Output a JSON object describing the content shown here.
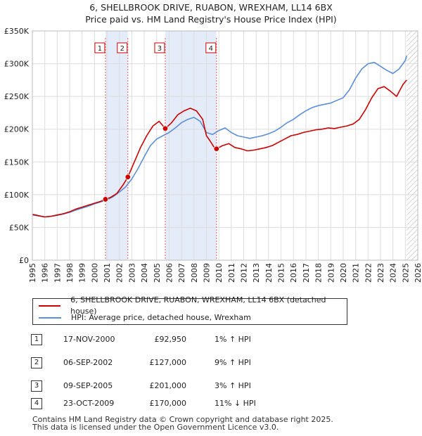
{
  "title": {
    "line1": "6, SHELLBROOK DRIVE, RUABON, WREXHAM, LL14 6BX",
    "line2": "Price paid vs. HM Land Registry's House Price Index (HPI)"
  },
  "chart_data": {
    "type": "line",
    "title": "6, SHELLBROOK DRIVE, RUABON, WREXHAM, LL14 6BX — Price paid vs. HM Land Registry's House Price Index (HPI)",
    "xlabel": "",
    "ylabel": "",
    "xlim": [
      1995,
      2026
    ],
    "ylim": [
      0,
      350000
    ],
    "x_ticks": [
      1995,
      1996,
      1997,
      1998,
      1999,
      2000,
      2001,
      2002,
      2003,
      2004,
      2005,
      2006,
      2007,
      2008,
      2009,
      2010,
      2011,
      2012,
      2013,
      2014,
      2015,
      2016,
      2017,
      2018,
      2019,
      2020,
      2021,
      2022,
      2023,
      2024,
      2025,
      2026
    ],
    "y_ticks": [
      0,
      50000,
      100000,
      150000,
      200000,
      250000,
      300000,
      350000
    ],
    "y_tick_labels": [
      "£0",
      "£50K",
      "£100K",
      "£150K",
      "£200K",
      "£250K",
      "£300K",
      "£350K"
    ],
    "grid": true,
    "shaded_periods": [
      [
        2000.88,
        2002.68
      ],
      [
        2005.69,
        2009.81
      ]
    ],
    "future_hatch_from": 2025.1,
    "series": [
      {
        "name": "6, SHELLBROOK DRIVE, RUABON, WREXHAM, LL14 6BX (detached house)",
        "color": "#cc0000",
        "x": [
          1995,
          1995.5,
          1996,
          1996.5,
          1997,
          1997.5,
          1998,
          1998.5,
          1999,
          1999.5,
          2000,
          2000.5,
          2000.88,
          2001.3,
          2001.8,
          2002.3,
          2002.68,
          2003.2,
          2003.7,
          2004.2,
          2004.7,
          2005.2,
          2005.69,
          2006.2,
          2006.7,
          2007.2,
          2007.7,
          2008.2,
          2008.7,
          2009.0,
          2009.3,
          2009.6,
          2009.81,
          2010.3,
          2010.8,
          2011.3,
          2011.8,
          2012.3,
          2012.8,
          2013.3,
          2013.8,
          2014.3,
          2014.8,
          2015.3,
          2015.8,
          2016.3,
          2016.8,
          2017.3,
          2017.8,
          2018.3,
          2018.8,
          2019.3,
          2019.8,
          2020.3,
          2020.8,
          2021.3,
          2021.8,
          2022.3,
          2022.8,
          2023.3,
          2023.8,
          2024.3,
          2024.8,
          2025.1
        ],
        "y": [
          70000,
          68000,
          66000,
          67000,
          69000,
          71000,
          74000,
          78000,
          81000,
          84000,
          87000,
          90000,
          92950,
          96000,
          102000,
          115000,
          127000,
          150000,
          172000,
          190000,
          205000,
          212000,
          201000,
          210000,
          222000,
          228000,
          232000,
          228000,
          215000,
          190000,
          182000,
          173000,
          170000,
          175000,
          178000,
          172000,
          170000,
          167000,
          168000,
          170000,
          172000,
          175000,
          180000,
          185000,
          190000,
          192000,
          195000,
          197000,
          199000,
          200000,
          202000,
          201000,
          203000,
          205000,
          208000,
          215000,
          230000,
          248000,
          262000,
          265000,
          258000,
          250000,
          268000,
          275000
        ]
      },
      {
        "name": "HPI: Average price, detached house, Wrexham",
        "color": "#5b8fd6",
        "x": [
          1995,
          1995.5,
          1996,
          1996.5,
          1997,
          1997.5,
          1998,
          1998.5,
          1999,
          1999.5,
          2000,
          2000.5,
          2001,
          2001.5,
          2002,
          2002.5,
          2003,
          2003.5,
          2004,
          2004.5,
          2005,
          2005.5,
          2006,
          2006.5,
          2007,
          2007.5,
          2008,
          2008.5,
          2009,
          2009.5,
          2010,
          2010.5,
          2011,
          2011.5,
          2012,
          2012.5,
          2013,
          2013.5,
          2014,
          2014.5,
          2015,
          2015.5,
          2016,
          2016.5,
          2017,
          2017.5,
          2018,
          2018.5,
          2019,
          2019.5,
          2020,
          2020.5,
          2021,
          2021.5,
          2022,
          2022.5,
          2023,
          2023.5,
          2024,
          2024.5,
          2025,
          2025.1
        ],
        "y": [
          69000,
          67500,
          66000,
          67000,
          68500,
          70500,
          73000,
          76500,
          79500,
          82500,
          86000,
          89000,
          92000,
          97000,
          104000,
          112000,
          124000,
          140000,
          158000,
          175000,
          185000,
          190000,
          195000,
          202000,
          210000,
          215000,
          218000,
          212000,
          195000,
          192000,
          198000,
          202000,
          195000,
          190000,
          188000,
          186000,
          188000,
          190000,
          193000,
          197000,
          203000,
          210000,
          215000,
          222000,
          228000,
          233000,
          236000,
          238000,
          240000,
          244000,
          248000,
          260000,
          278000,
          292000,
          300000,
          302000,
          296000,
          290000,
          285000,
          292000,
          305000,
          312000
        ]
      }
    ],
    "sales": [
      {
        "label": "1",
        "x": 2000.88,
        "price": 92950
      },
      {
        "label": "2",
        "x": 2002.68,
        "price": 127000
      },
      {
        "label": "3",
        "x": 2005.69,
        "price": 201000
      },
      {
        "label": "4",
        "x": 2009.81,
        "price": 170000
      }
    ]
  },
  "legend": {
    "property": "6, SHELLBROOK DRIVE, RUABON, WREXHAM, LL14 6BX (detached house)",
    "hpi": "HPI: Average price, detached house, Wrexham"
  },
  "transactions": [
    {
      "num": "1",
      "date": "17-NOV-2000",
      "price": "£92,950",
      "hpi": "1% ↑ HPI"
    },
    {
      "num": "2",
      "date": "06-SEP-2002",
      "price": "£127,000",
      "hpi": "9% ↑ HPI"
    },
    {
      "num": "3",
      "date": "09-SEP-2005",
      "price": "£201,000",
      "hpi": "3% ↑ HPI"
    },
    {
      "num": "4",
      "date": "23-OCT-2009",
      "price": "£170,000",
      "hpi": "11% ↓ HPI"
    }
  ],
  "footer": {
    "line1": "Contains HM Land Registry data © Crown copyright and database right 2025.",
    "line2": "This data is licensed under the Open Government Licence v3.0."
  }
}
